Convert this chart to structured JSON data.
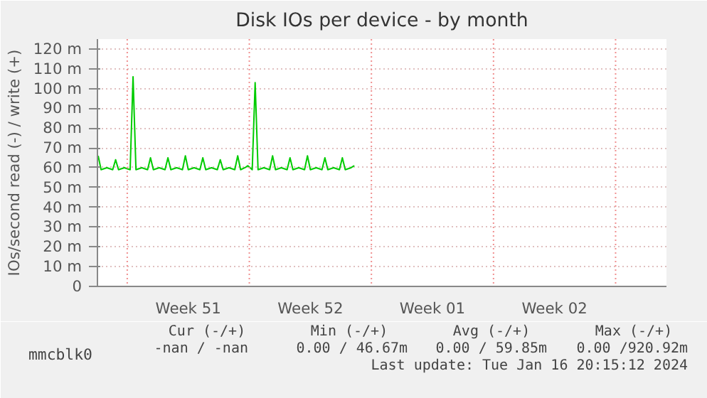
{
  "chart_data": {
    "type": "line",
    "title": "Disk IOs per device - by month",
    "ylabel": "IOs/second read (-) / write (+)",
    "x": [
      "2023-12-16T08:00",
      "2023-12-16T12:00",
      "2023-12-16T20:00",
      "2023-12-17T04:00",
      "2023-12-17T08:00",
      "2023-12-17T12:00",
      "2023-12-17T20:00",
      "2023-12-18T04:00",
      "2023-12-18T08:00",
      "2023-12-18T12:00",
      "2023-12-18T20:00",
      "2023-12-19T04:00",
      "2023-12-19T08:00",
      "2023-12-19T12:00",
      "2023-12-19T20:00",
      "2023-12-20T04:00",
      "2023-12-20T08:00",
      "2023-12-20T12:00",
      "2023-12-20T20:00",
      "2023-12-21T04:00",
      "2023-12-21T08:00",
      "2023-12-21T12:00",
      "2023-12-21T20:00",
      "2023-12-22T04:00",
      "2023-12-22T08:00",
      "2023-12-22T12:00",
      "2023-12-22T20:00",
      "2023-12-23T04:00",
      "2023-12-23T08:00",
      "2023-12-23T12:00",
      "2023-12-23T20:00",
      "2023-12-24T04:00",
      "2023-12-24T08:00",
      "2023-12-24T12:00",
      "2023-12-24T18:00",
      "2023-12-24T22:00",
      "2023-12-25T04:00",
      "2023-12-25T08:00",
      "2023-12-25T12:00",
      "2023-12-25T20:00",
      "2023-12-26T04:00",
      "2023-12-26T08:00",
      "2023-12-26T12:00",
      "2023-12-26T20:00",
      "2023-12-27T04:00",
      "2023-12-27T08:00",
      "2023-12-27T12:00",
      "2023-12-27T20:00",
      "2023-12-28T04:00",
      "2023-12-28T08:00",
      "2023-12-28T12:00",
      "2023-12-28T20:00",
      "2023-12-29T04:00",
      "2023-12-29T08:00",
      "2023-12-29T12:00",
      "2023-12-29T20:00",
      "2023-12-30T04:00",
      "2023-12-30T08:00",
      "2023-12-30T12:00",
      "2023-12-30T20:00",
      "2023-12-31T00:30"
    ],
    "series": [
      {
        "name": "mmcblk0",
        "color": "#00cc00",
        "values": [
          66,
          59,
          60,
          59,
          64,
          59,
          60,
          59,
          106,
          59,
          60,
          59,
          65,
          59,
          60,
          59,
          65,
          59,
          60,
          59,
          66,
          59,
          60,
          59,
          65,
          59,
          60,
          59,
          64,
          59,
          60,
          59,
          66,
          59,
          60,
          61,
          59,
          103,
          59,
          60,
          59,
          66,
          59,
          60,
          59,
          65,
          59,
          60,
          59,
          66,
          59,
          60,
          59,
          65,
          59,
          60,
          59,
          65,
          59,
          60,
          61
        ]
      }
    ],
    "xlim": [
      "2023-12-16T07:00",
      "2024-01-17T22:00"
    ],
    "xticks": [
      {
        "value": "2023-12-21T12:00",
        "label": "Week 51"
      },
      {
        "value": "2023-12-28T12:00",
        "label": "Week 52"
      },
      {
        "value": "2024-01-04T12:00",
        "label": "Week 01"
      },
      {
        "value": "2024-01-11T12:00",
        "label": "Week 02"
      }
    ],
    "ylim": [
      0,
      125
    ],
    "yticks": [
      {
        "value": 0,
        "label": "0"
      },
      {
        "value": 10,
        "label": "10 m"
      },
      {
        "value": 20,
        "label": "20 m"
      },
      {
        "value": 30,
        "label": "30 m"
      },
      {
        "value": 40,
        "label": "40 m"
      },
      {
        "value": 50,
        "label": "50 m"
      },
      {
        "value": 60,
        "label": "60 m"
      },
      {
        "value": 70,
        "label": "70 m"
      },
      {
        "value": 80,
        "label": "80 m"
      },
      {
        "value": 90,
        "label": "90 m"
      },
      {
        "value": 100,
        "label": "100 m"
      },
      {
        "value": 110,
        "label": "110 m"
      },
      {
        "value": 120,
        "label": "120 m"
      }
    ],
    "ref_lines": [
      {
        "axis": "x",
        "value": "2023-12-18T00:00",
        "color": "#f09090",
        "line_style": "dotted"
      },
      {
        "axis": "x",
        "value": "2023-12-25T00:00",
        "color": "#f09090",
        "line_style": "dotted"
      },
      {
        "axis": "x",
        "value": "2024-01-01T00:00",
        "color": "#f09090",
        "line_style": "dotted"
      },
      {
        "axis": "x",
        "value": "2024-01-08T00:00",
        "color": "#f09090",
        "line_style": "dotted"
      },
      {
        "axis": "x",
        "value": "2024-01-15T00:00",
        "color": "#f09090",
        "line_style": "dotted"
      }
    ],
    "grid": "y",
    "legend": "bottom",
    "line_style": "solid",
    "annotations": [
      "Cur (-/+)",
      "Min (-/+)",
      "Avg (-/+)",
      "Max (-/+)",
      "-nan /  -nan",
      "0.00 / 46.67m",
      "0.00 / 59.85m",
      "0.00 /920.92m",
      "Last update: Tue Jan 16 20:15:12 2024"
    ]
  }
}
